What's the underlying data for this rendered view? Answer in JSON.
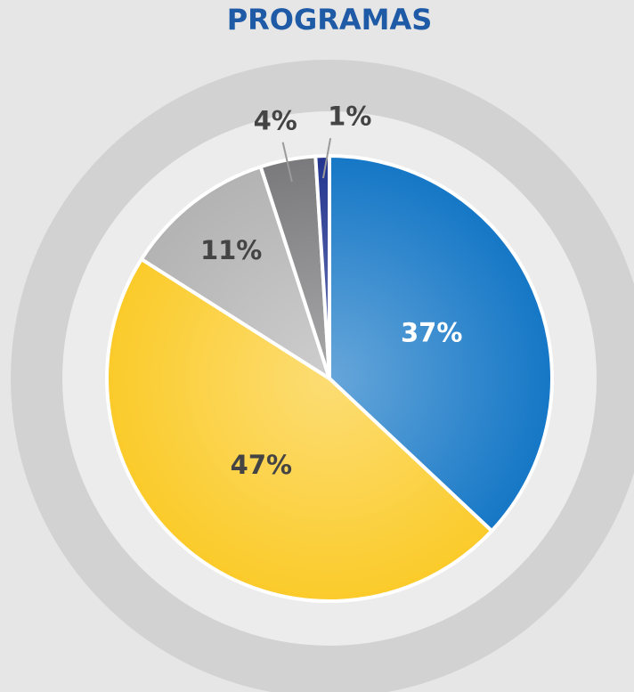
{
  "chart_data": {
    "type": "pie",
    "title": "PROGRAMAS",
    "values": [
      37,
      47,
      11,
      4,
      1
    ],
    "value_labels": [
      "37%",
      "47%",
      "11%",
      "4%",
      "1%"
    ],
    "colors": [
      "#1577c6",
      "#fbcb2a",
      "#b3b3b3",
      "#7a7a7c",
      "#22348f"
    ]
  }
}
